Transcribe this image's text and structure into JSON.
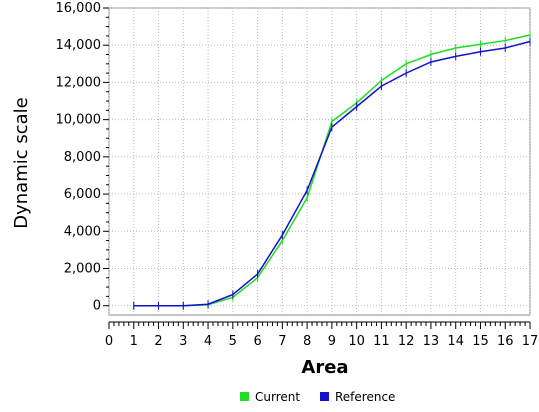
{
  "chart_data": {
    "type": "line",
    "xlabel": "Area",
    "ylabel": "Dynamic scale",
    "xlim": [
      0,
      17
    ],
    "ylim": [
      -500,
      16000
    ],
    "x_ticks": [
      0,
      1,
      2,
      3,
      4,
      5,
      6,
      7,
      8,
      9,
      10,
      11,
      12,
      13,
      14,
      15,
      16,
      17
    ],
    "x_tick_labels": [
      "0",
      "1",
      "2",
      "3",
      "4",
      "5",
      "6",
      "7",
      "8",
      "9",
      "10",
      "11",
      "12",
      "13",
      "14",
      "15",
      "16",
      "17"
    ],
    "y_ticks": [
      0,
      2000,
      4000,
      6000,
      8000,
      10000,
      12000,
      14000,
      16000
    ],
    "y_tick_labels": [
      "0",
      "2,000",
      "4,000",
      "6,000",
      "8,000",
      "10,000",
      "12,000",
      "14,000",
      "16,000"
    ],
    "grid": true,
    "legend_position": "bottom-center",
    "x": [
      1,
      2,
      3,
      4,
      5,
      6,
      7,
      8,
      9,
      10,
      11,
      12,
      13,
      14,
      15,
      16,
      17
    ],
    "series": [
      {
        "name": "Current",
        "color": "#22dd22",
        "values": [
          0,
          0,
          0,
          50,
          450,
          1500,
          3500,
          5800,
          9900,
          10900,
          12100,
          13000,
          13500,
          13850,
          14050,
          14250,
          14550
        ]
      },
      {
        "name": "Reference",
        "color": "#1111cc",
        "values": [
          0,
          0,
          0,
          80,
          600,
          1700,
          3800,
          6200,
          9600,
          10700,
          11800,
          12500,
          13100,
          13400,
          13650,
          13850,
          14200
        ]
      }
    ]
  }
}
